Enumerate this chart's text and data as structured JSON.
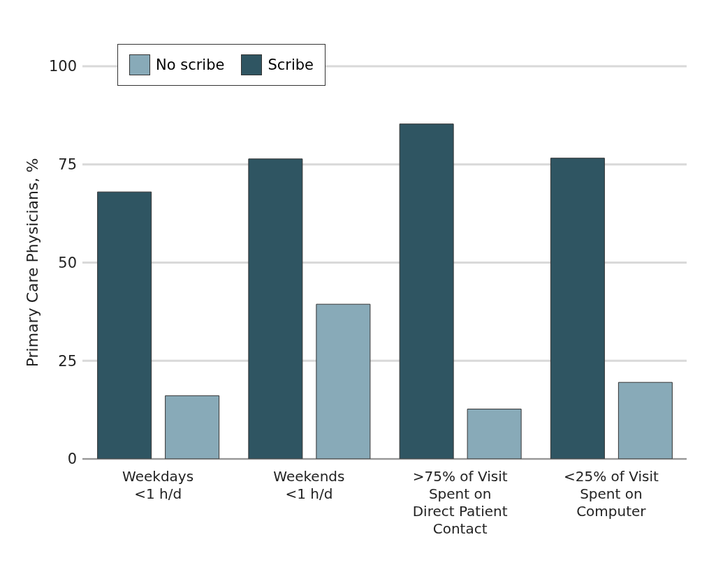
{
  "chart_data": {
    "type": "bar",
    "ylabel": "Primary Care Physicians, %",
    "categories": [
      "Weekdays\n<1 h/d",
      "Weekends\n<1 h/d",
      ">75% of Visit\nSpent on\nDirect Patient\nContact",
      "<25% of Visit\nSpent on\nComputer"
    ],
    "series": [
      {
        "name": "Scribe",
        "color": "#2f5562",
        "values": [
          68,
          76.4,
          85.3,
          76.6
        ]
      },
      {
        "name": "No scribe",
        "color": "#88aab8",
        "values": [
          16.1,
          39.4,
          12.7,
          19.5
        ]
      }
    ],
    "ylim": [
      0,
      100
    ],
    "yticks": [
      0,
      25,
      50,
      75,
      100
    ],
    "grid": "y",
    "legend": "top left"
  }
}
